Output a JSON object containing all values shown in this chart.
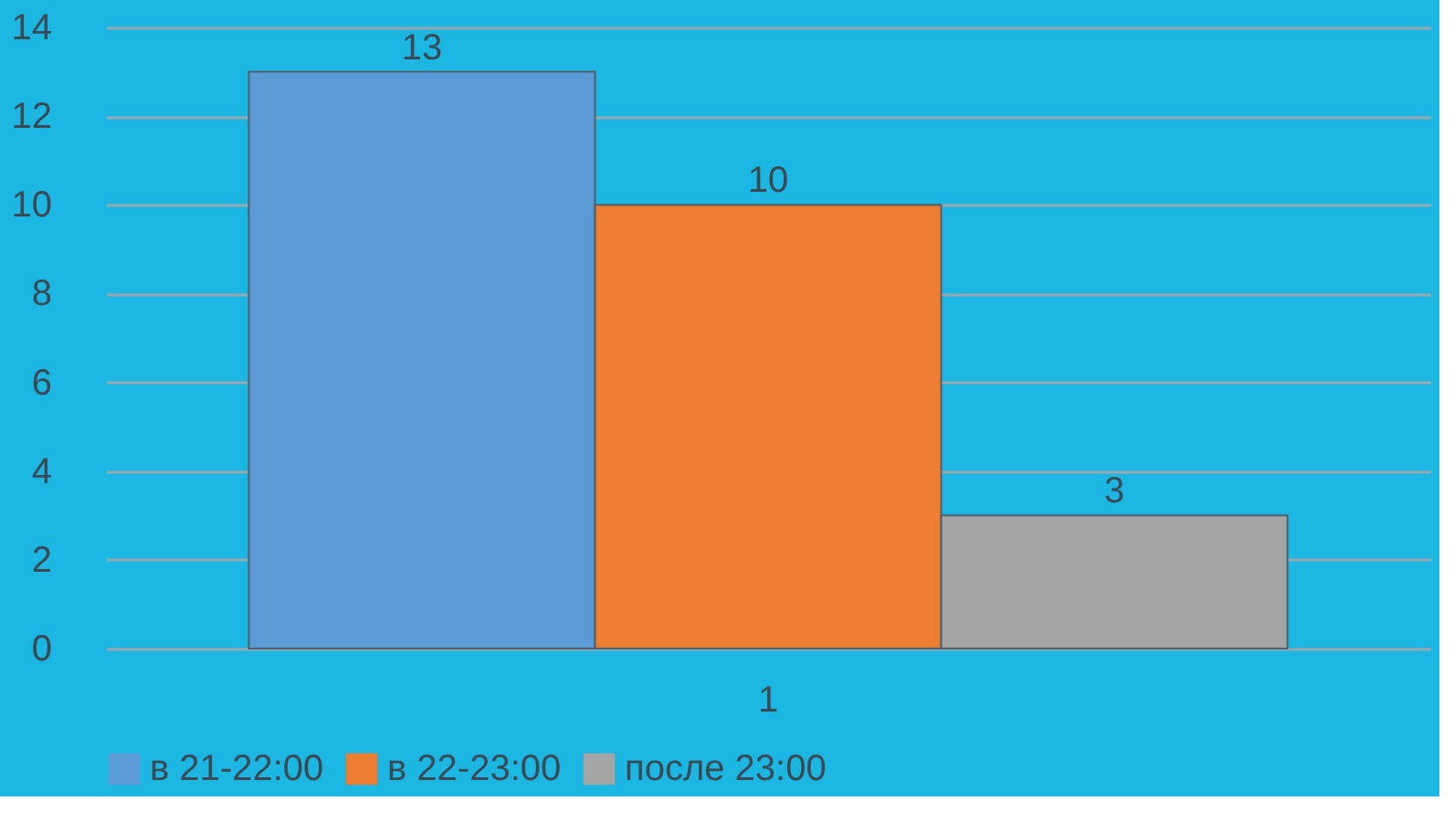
{
  "chart_data": {
    "type": "bar",
    "categories": [
      "1"
    ],
    "series": [
      {
        "name": "в 21-22:00",
        "color": "#5b9bd5",
        "values": [
          13
        ]
      },
      {
        "name": "в 22-23:00",
        "color": "#ed7d31",
        "values": [
          10
        ]
      },
      {
        "name": "после 23:00",
        "color": "#a5a5a5",
        "values": [
          3
        ]
      }
    ],
    "ylim": [
      0,
      14
    ],
    "yticks": [
      0,
      2,
      4,
      6,
      8,
      10,
      12,
      14
    ],
    "grid": "y",
    "legend": "bottom",
    "data_labels": true
  }
}
